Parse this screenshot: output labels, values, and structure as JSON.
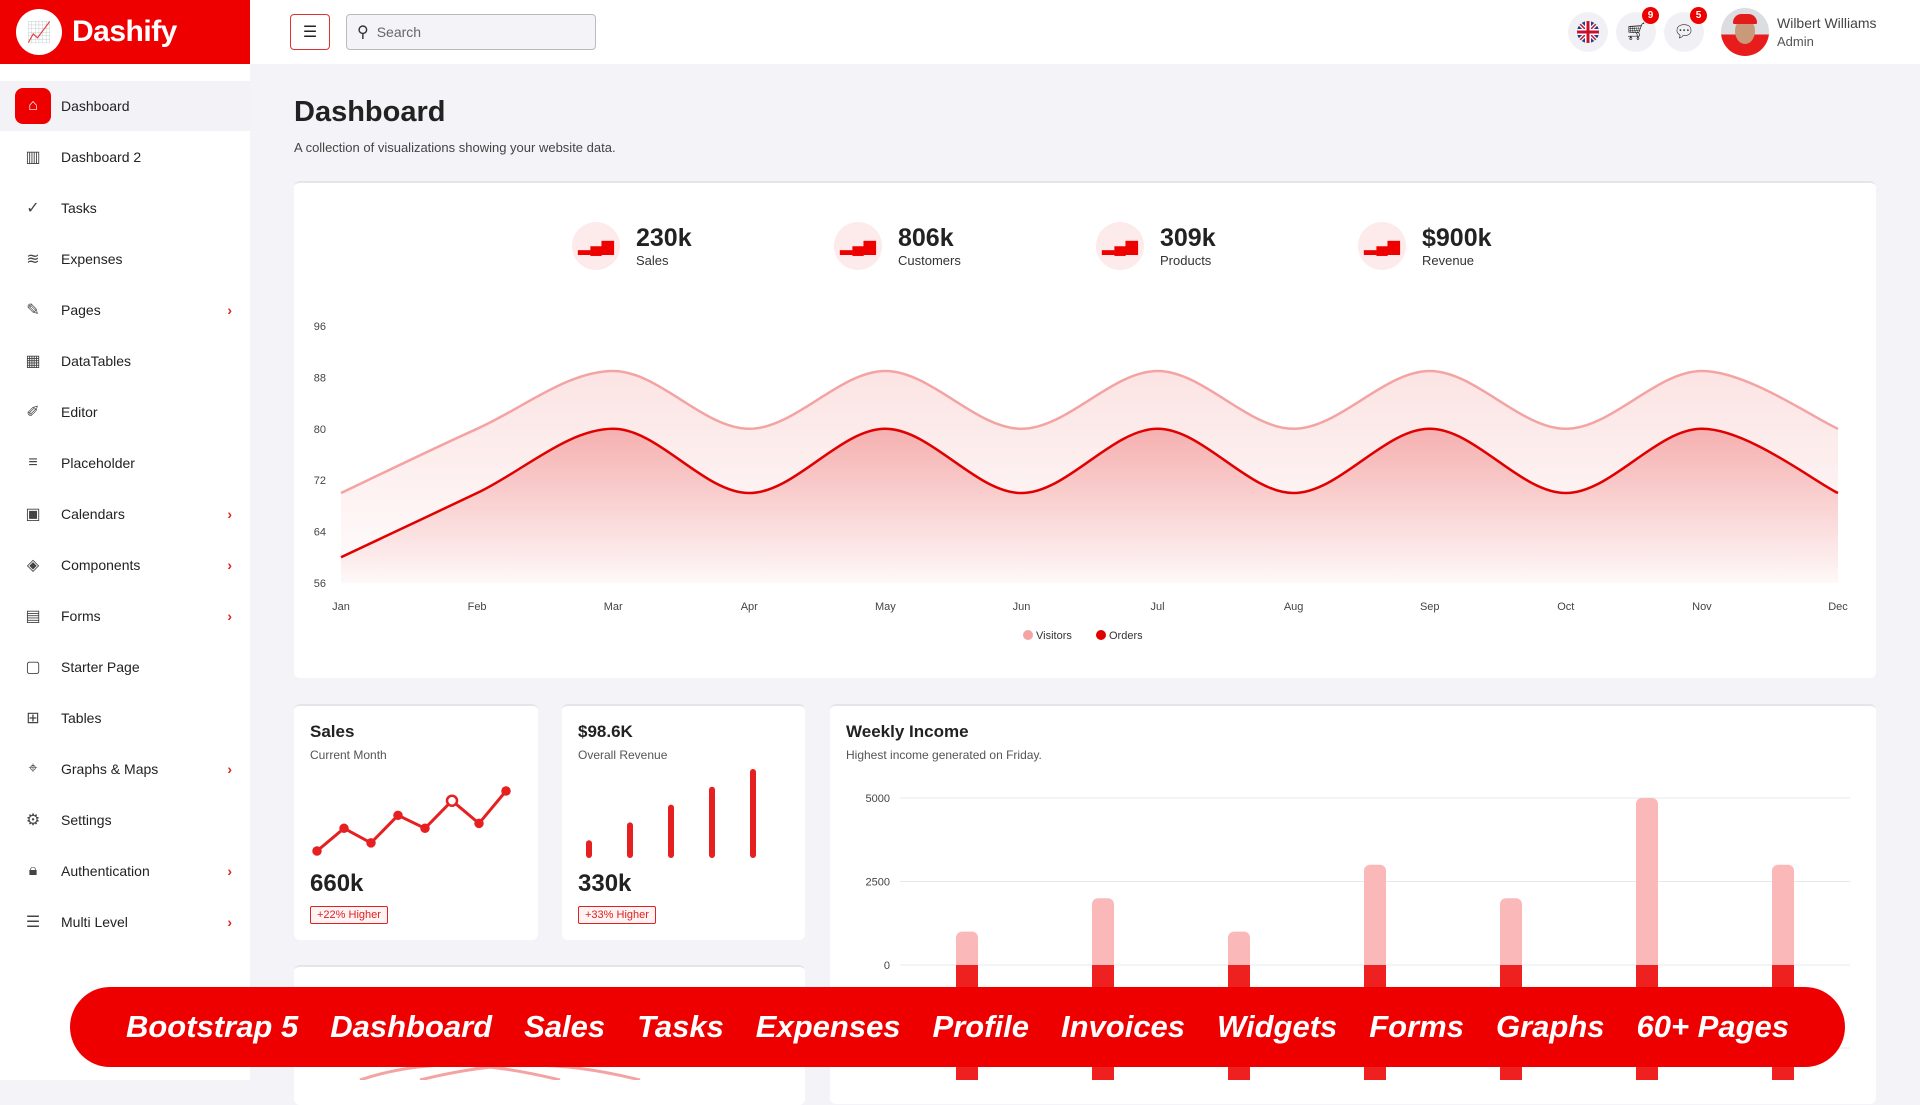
{
  "brand": {
    "name": "Dashify"
  },
  "topbar": {
    "search_placeholder": "Search",
    "cart_count": "9",
    "messages_count": "5",
    "user_name": "Wilbert Williams",
    "user_role": "Admin"
  },
  "sidebar": {
    "items": [
      {
        "label": "Dashboard",
        "icon": "home-icon",
        "active": true,
        "chevron": false
      },
      {
        "label": "Dashboard 2",
        "icon": "bar-chart-icon",
        "chevron": false
      },
      {
        "label": "Tasks",
        "icon": "task-check-icon",
        "chevron": false
      },
      {
        "label": "Expenses",
        "icon": "expenses-icon",
        "chevron": false
      },
      {
        "label": "Pages",
        "icon": "feather-icon",
        "chevron": true
      },
      {
        "label": "DataTables",
        "icon": "table-grid-icon",
        "chevron": false
      },
      {
        "label": "Editor",
        "icon": "pencil-icon",
        "chevron": false
      },
      {
        "label": "Placeholder",
        "icon": "lines-icon",
        "chevron": false
      },
      {
        "label": "Calendars",
        "icon": "calendar-icon",
        "chevron": true
      },
      {
        "label": "Components",
        "icon": "layers-icon",
        "chevron": true
      },
      {
        "label": "Forms",
        "icon": "form-icon",
        "chevron": true
      },
      {
        "label": "Starter Page",
        "icon": "page-icon",
        "chevron": false
      },
      {
        "label": "Tables",
        "icon": "grid-icon",
        "chevron": false
      },
      {
        "label": "Graphs & Maps",
        "icon": "map-pin-icon",
        "chevron": true
      },
      {
        "label": "Settings",
        "icon": "gear-icon",
        "chevron": false
      },
      {
        "label": "Authentication",
        "icon": "lock-icon",
        "chevron": true
      },
      {
        "label": "Multi Level",
        "icon": "menu-icon",
        "chevron": true
      }
    ]
  },
  "page": {
    "title": "Dashboard",
    "subtitle": "A collection of visualizations showing your website data."
  },
  "stats": [
    {
      "value": "230k",
      "label": "Sales"
    },
    {
      "value": "806k",
      "label": "Customers"
    },
    {
      "value": "309k",
      "label": "Products"
    },
    {
      "value": "$900k",
      "label": "Revenue"
    }
  ],
  "colors": {
    "accent": "#ee0000",
    "visitors": "#f4a3a3",
    "orders": "#e00000"
  },
  "chart_data": [
    {
      "type": "area",
      "categories": [
        "Jan",
        "Feb",
        "Mar",
        "Apr",
        "May",
        "Jun",
        "Jul",
        "Aug",
        "Sep",
        "Oct",
        "Nov",
        "Dec"
      ],
      "ylim": [
        56,
        96
      ],
      "yticks": [
        56,
        64,
        72,
        80,
        88,
        96
      ],
      "grid": false,
      "legend": "bottom",
      "series": [
        {
          "name": "Visitors",
          "values": [
            70,
            80,
            89,
            80,
            89,
            80,
            89,
            80,
            89,
            80,
            89,
            80
          ]
        },
        {
          "name": "Orders",
          "values": [
            60,
            70,
            80,
            70,
            80,
            70,
            80,
            70,
            80,
            70,
            80,
            70
          ]
        }
      ]
    },
    {
      "type": "line",
      "title": "Sales",
      "subtitle": "Current Month",
      "values": [
        10,
        24,
        15,
        32,
        24,
        41,
        27,
        47
      ],
      "total": "660k",
      "change": "+22% Higher"
    },
    {
      "type": "bar",
      "title": "$98.6K",
      "subtitle": "Overall Revenue",
      "values": [
        10,
        20,
        30,
        40,
        50
      ],
      "total": "330k",
      "change": "+33% Higher"
    },
    {
      "type": "bar",
      "title": "Weekly Income",
      "subtitle": "Highest income generated on Friday.",
      "ylim": [
        0,
        5000
      ],
      "yticks": [
        0,
        2500,
        5000
      ],
      "series": [
        {
          "values": [
            1000,
            2000,
            1000,
            3000,
            2000,
            5000,
            3000
          ]
        }
      ]
    }
  ],
  "banner": {
    "items": [
      "Bootstrap 5",
      "Dashboard",
      "Sales",
      "Tasks",
      "Expenses",
      "Profile",
      "Invoices",
      "Widgets",
      "Forms",
      "Graphs",
      "60+ Pages"
    ]
  }
}
